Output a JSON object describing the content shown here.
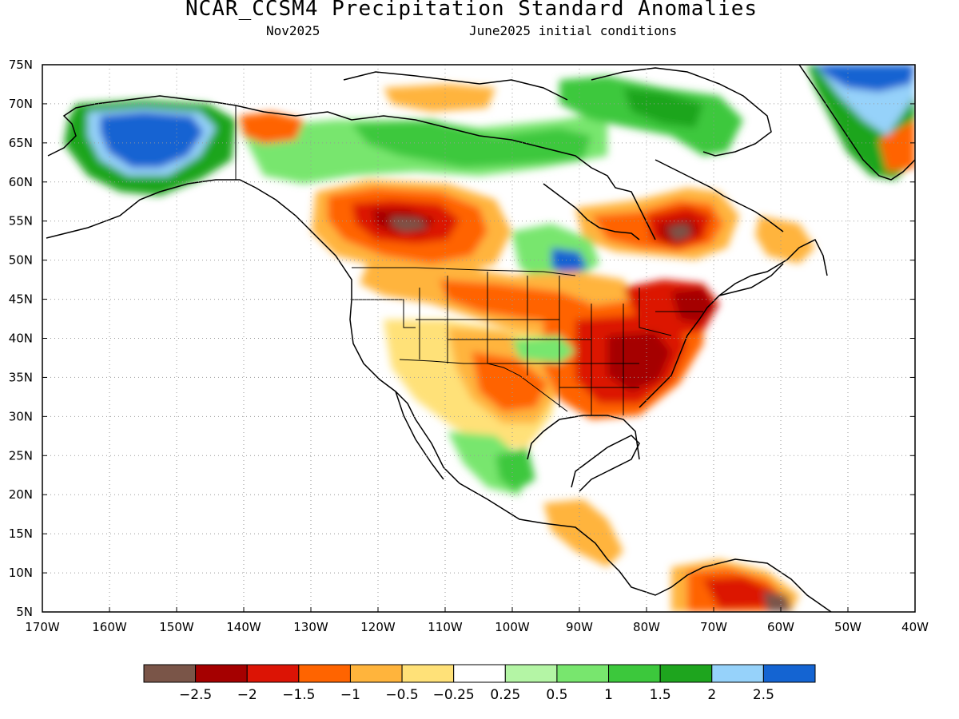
{
  "title": "NCAR_CCSM4 Precipitation Standard Anomalies",
  "subtitle_left": "Nov2025",
  "subtitle_right": "June2025 initial conditions",
  "map": {
    "lon_range": [
      -170,
      -40
    ],
    "lat_range": [
      5,
      75
    ],
    "lat_labels": [
      "75N",
      "70N",
      "65N",
      "60N",
      "55N",
      "50N",
      "45N",
      "40N",
      "35N",
      "30N",
      "25N",
      "20N",
      "15N",
      "10N",
      "5N"
    ],
    "lon_labels": [
      "170W",
      "160W",
      "150W",
      "140W",
      "130W",
      "120W",
      "110W",
      "100W",
      "90W",
      "80W",
      "70W",
      "60W",
      "50W",
      "40W"
    ],
    "gridlines": "dotted"
  },
  "colorbar": {
    "colors": [
      "#7a5548",
      "#a50000",
      "#dc1405",
      "#ff6400",
      "#ffb43c",
      "#ffe178",
      "#ffffff",
      "#b4f5a5",
      "#78e66e",
      "#3cc83c",
      "#1ea51e",
      "#96d2fa",
      "#1464d2"
    ],
    "labels": [
      "-2.5",
      "-2",
      "-1.5",
      "-1",
      "-0.5",
      "-0.25",
      "0.25",
      "0.5",
      "1",
      "1.5",
      "2",
      "2.5"
    ]
  },
  "anomaly_regions": [
    {
      "name": "alaska-wet",
      "level": 2.5,
      "lon": -152,
      "lat": 65
    },
    {
      "name": "northern-canada-wet",
      "level": 1.5,
      "lon": -90,
      "lat": 66
    },
    {
      "name": "greenland-wet",
      "level": 2.5,
      "lon": -48,
      "lat": 72
    },
    {
      "name": "western-canada-dry",
      "level": -2.5,
      "lon": -115,
      "lat": 55
    },
    {
      "name": "quebec-dry",
      "level": -2.5,
      "lon": -75,
      "lat": 53
    },
    {
      "name": "southeast-us-dry",
      "level": -2,
      "lon": -82,
      "lat": 37
    },
    {
      "name": "northeast-us-dry",
      "level": -2,
      "lon": -75,
      "lat": 43
    },
    {
      "name": "great-lakes-wet",
      "level": 2.5,
      "lon": -92,
      "lat": 50
    },
    {
      "name": "south-america-dry",
      "level": -2,
      "lon": -70,
      "lat": 8
    }
  ]
}
